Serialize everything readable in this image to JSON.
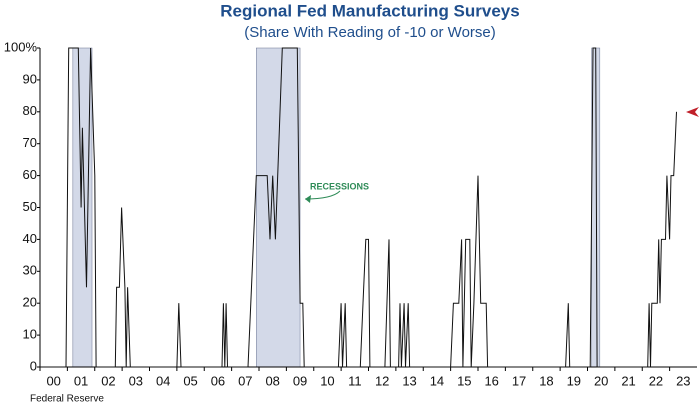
{
  "chart_data": {
    "type": "line",
    "title": "Regional Fed Manufacturing Surveys",
    "subtitle": "(Share With Reading of -10 or Worse)",
    "source": "Federal Reserve",
    "annotation": "RECESSIONS",
    "color": "#111111",
    "recession_color": "#d3d9e8",
    "recessions": [
      [
        2001.2,
        2001.9
      ],
      [
        2007.9,
        2009.5
      ],
      [
        2020.15,
        2020.45
      ]
    ],
    "x": [
      2000.0,
      2000.95,
      2001.05,
      2001.4,
      2001.5,
      2001.55,
      2001.7,
      2001.85,
      2002.0,
      2002.05,
      2002.75,
      2002.8,
      2002.9,
      2002.98,
      2003.1,
      2003.15,
      2003.2,
      2003.3,
      2005.0,
      2005.07,
      2005.15,
      2006.65,
      2006.7,
      2006.75,
      2006.8,
      2006.85,
      2007.6,
      2007.7,
      2007.9,
      2008.3,
      2008.4,
      2008.5,
      2008.6,
      2008.85,
      2009.4,
      2009.5,
      2009.6,
      2009.65,
      2010.9,
      2011.0,
      2011.05,
      2011.15,
      2011.2,
      2011.7,
      2011.8,
      2011.9,
      2012.0,
      2012.05,
      2012.6,
      2012.75,
      2012.8,
      2013.1,
      2013.15,
      2013.2,
      2013.3,
      2013.35,
      2013.45,
      2013.5,
      2015.0,
      2015.1,
      2015.3,
      2015.4,
      2015.45,
      2015.55,
      2015.7,
      2015.75,
      2015.85,
      2016.0,
      2016.1,
      2016.3,
      2016.35,
      2019.2,
      2019.3,
      2019.35,
      2020.1,
      2020.2,
      2020.3,
      2020.35,
      2022.2,
      2022.25,
      2022.3,
      2022.35,
      2022.55,
      2022.6,
      2022.65,
      2022.7,
      2022.85,
      2022.9,
      2023.0,
      2023.05,
      2023.15,
      2023.25
    ],
    "values": [
      0,
      0,
      100,
      100,
      50,
      75,
      25,
      100,
      60,
      0,
      0,
      25,
      25,
      50,
      25,
      0,
      25,
      0,
      0,
      20,
      0,
      0,
      20,
      0,
      20,
      0,
      0,
      20,
      60,
      60,
      40,
      60,
      40,
      100,
      100,
      20,
      20,
      0,
      0,
      20,
      0,
      20,
      0,
      0,
      20,
      40,
      40,
      0,
      0,
      40,
      0,
      0,
      20,
      0,
      20,
      0,
      20,
      0,
      0,
      20,
      20,
      40,
      0,
      40,
      40,
      0,
      20,
      60,
      20,
      20,
      0,
      0,
      20,
      0,
      0,
      100,
      100,
      0,
      0,
      20,
      0,
      20,
      20,
      40,
      20,
      40,
      40,
      60,
      40,
      60,
      60,
      80
    ],
    "xlim": [
      2000,
      2024
    ],
    "xticks": [
      {
        "value": 2000,
        "label": "00"
      },
      {
        "value": 2001,
        "label": "01"
      },
      {
        "value": 2002,
        "label": "02"
      },
      {
        "value": 2003,
        "label": "03"
      },
      {
        "value": 2004,
        "label": "04"
      },
      {
        "value": 2005,
        "label": "05"
      },
      {
        "value": 2006,
        "label": "06"
      },
      {
        "value": 2007,
        "label": "07"
      },
      {
        "value": 2008,
        "label": "08"
      },
      {
        "value": 2009,
        "label": "09"
      },
      {
        "value": 2010,
        "label": "10"
      },
      {
        "value": 2011,
        "label": "11"
      },
      {
        "value": 2012,
        "label": "12"
      },
      {
        "value": 2013,
        "label": "13"
      },
      {
        "value": 2014,
        "label": "14"
      },
      {
        "value": 2015,
        "label": "15"
      },
      {
        "value": 2016,
        "label": "16"
      },
      {
        "value": 2017,
        "label": "17"
      },
      {
        "value": 2018,
        "label": "18"
      },
      {
        "value": 2019,
        "label": "19"
      },
      {
        "value": 2020,
        "label": "20"
      },
      {
        "value": 2021,
        "label": "21"
      },
      {
        "value": 2022,
        "label": "22"
      },
      {
        "value": 2023,
        "label": "23"
      }
    ],
    "ylim": [
      0,
      100
    ],
    "yticks": [
      0,
      10,
      20,
      30,
      40,
      50,
      60,
      70,
      80,
      90,
      {
        "value": 100,
        "label": "100%"
      }
    ]
  }
}
